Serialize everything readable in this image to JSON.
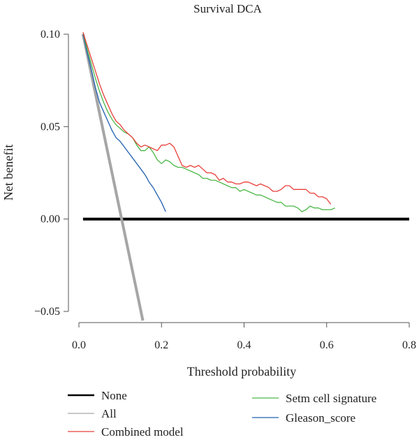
{
  "chart_data": {
    "type": "line",
    "title": "Survival DCA",
    "xlabel": "Threshold probability",
    "ylabel": "Net benefit",
    "xlim": [
      0.0,
      0.8
    ],
    "ylim": [
      -0.05,
      0.1
    ],
    "xticks": [
      0.0,
      0.2,
      0.4,
      0.6,
      0.8
    ],
    "xtick_labels": [
      "0.0",
      "0.2",
      "0.4",
      "0.6",
      "0.8"
    ],
    "yticks": [
      -0.05,
      0.0,
      0.05,
      0.1
    ],
    "ytick_labels": [
      "−0.05",
      "0.00",
      "0.05",
      "0.10"
    ],
    "grid": false,
    "legend_position": "bottom",
    "series": [
      {
        "name": "None",
        "color": "#000000",
        "x": [
          0.01,
          0.8
        ],
        "y": [
          0.0,
          0.0
        ]
      },
      {
        "name": "All",
        "color": "#a6a6a6",
        "x": [
          0.01,
          0.155
        ],
        "y": [
          0.1,
          -0.055
        ]
      },
      {
        "name": "Combined model",
        "color": "#e8403a",
        "x": [
          0.01,
          0.02,
          0.03,
          0.04,
          0.05,
          0.06,
          0.07,
          0.08,
          0.09,
          0.1,
          0.11,
          0.12,
          0.13,
          0.14,
          0.15,
          0.16,
          0.17,
          0.18,
          0.19,
          0.2,
          0.21,
          0.22,
          0.23,
          0.24,
          0.25,
          0.26,
          0.27,
          0.28,
          0.29,
          0.3,
          0.31,
          0.32,
          0.33,
          0.34,
          0.35,
          0.36,
          0.37,
          0.38,
          0.39,
          0.4,
          0.41,
          0.42,
          0.43,
          0.44,
          0.45,
          0.46,
          0.47,
          0.48,
          0.49,
          0.5,
          0.51,
          0.52,
          0.53,
          0.54,
          0.55,
          0.56,
          0.57,
          0.58,
          0.59,
          0.6,
          0.61
        ],
        "y": [
          0.101,
          0.094,
          0.087,
          0.08,
          0.073,
          0.067,
          0.062,
          0.057,
          0.053,
          0.051,
          0.048,
          0.046,
          0.044,
          0.041,
          0.039,
          0.04,
          0.039,
          0.038,
          0.037,
          0.04,
          0.04,
          0.041,
          0.039,
          0.034,
          0.029,
          0.028,
          0.029,
          0.028,
          0.029,
          0.027,
          0.025,
          0.025,
          0.024,
          0.021,
          0.022,
          0.02,
          0.02,
          0.019,
          0.019,
          0.02,
          0.02,
          0.019,
          0.018,
          0.019,
          0.018,
          0.017,
          0.015,
          0.015,
          0.016,
          0.018,
          0.018,
          0.016,
          0.016,
          0.016,
          0.016,
          0.014,
          0.014,
          0.012,
          0.012,
          0.011,
          0.008
        ]
      },
      {
        "name": "Setm cell signature",
        "color": "#4cb848",
        "x": [
          0.01,
          0.02,
          0.03,
          0.04,
          0.05,
          0.06,
          0.07,
          0.08,
          0.09,
          0.1,
          0.11,
          0.12,
          0.13,
          0.14,
          0.15,
          0.16,
          0.17,
          0.18,
          0.19,
          0.2,
          0.21,
          0.22,
          0.23,
          0.24,
          0.25,
          0.26,
          0.27,
          0.28,
          0.29,
          0.3,
          0.31,
          0.32,
          0.33,
          0.34,
          0.35,
          0.36,
          0.37,
          0.38,
          0.39,
          0.4,
          0.41,
          0.42,
          0.43,
          0.44,
          0.45,
          0.46,
          0.47,
          0.48,
          0.49,
          0.5,
          0.51,
          0.52,
          0.53,
          0.54,
          0.55,
          0.56,
          0.57,
          0.58,
          0.59,
          0.6,
          0.61,
          0.62
        ],
        "y": [
          0.101,
          0.092,
          0.084,
          0.076,
          0.069,
          0.063,
          0.058,
          0.054,
          0.051,
          0.049,
          0.047,
          0.046,
          0.044,
          0.04,
          0.037,
          0.037,
          0.039,
          0.036,
          0.032,
          0.03,
          0.032,
          0.031,
          0.029,
          0.028,
          0.028,
          0.027,
          0.026,
          0.025,
          0.024,
          0.022,
          0.022,
          0.021,
          0.021,
          0.02,
          0.019,
          0.018,
          0.017,
          0.017,
          0.015,
          0.016,
          0.015,
          0.014,
          0.013,
          0.013,
          0.012,
          0.011,
          0.01,
          0.009,
          0.009,
          0.007,
          0.007,
          0.007,
          0.006,
          0.004,
          0.005,
          0.007,
          0.006,
          0.006,
          0.005,
          0.005,
          0.005,
          0.006
        ]
      },
      {
        "name": "Gleason_score",
        "color": "#2060b0",
        "x": [
          0.01,
          0.02,
          0.03,
          0.04,
          0.05,
          0.06,
          0.07,
          0.08,
          0.09,
          0.1,
          0.11,
          0.12,
          0.13,
          0.14,
          0.15,
          0.16,
          0.17,
          0.18,
          0.19,
          0.2,
          0.21
        ],
        "y": [
          0.1,
          0.09,
          0.081,
          0.071,
          0.063,
          0.058,
          0.053,
          0.048,
          0.044,
          0.042,
          0.039,
          0.036,
          0.033,
          0.03,
          0.027,
          0.024,
          0.02,
          0.017,
          0.013,
          0.009,
          0.004
        ]
      }
    ]
  }
}
